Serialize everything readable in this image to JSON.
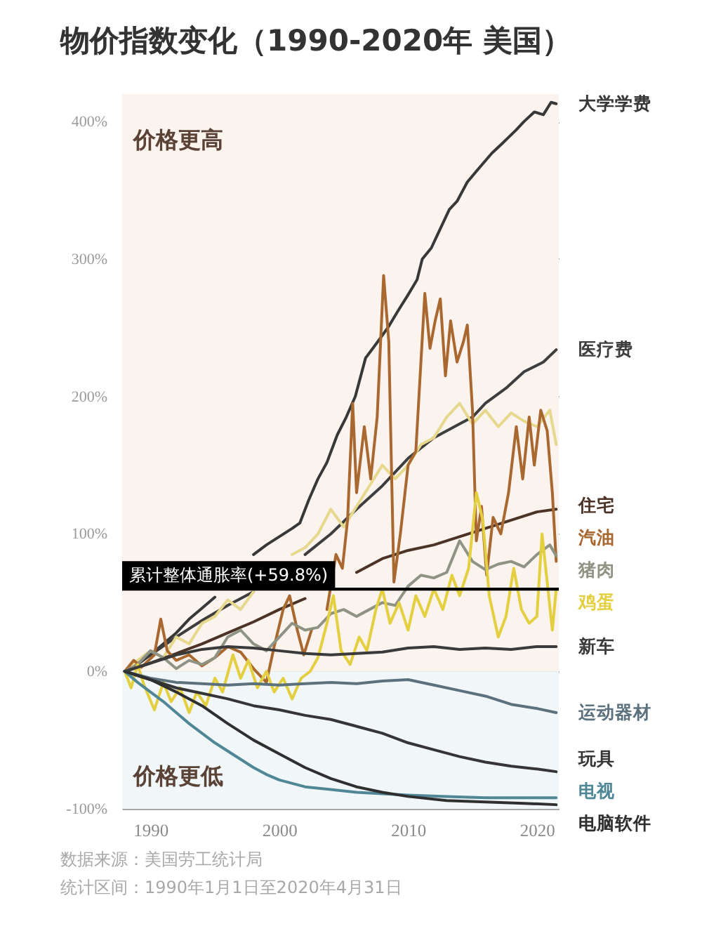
{
  "chart_data": {
    "type": "line",
    "title": "物价指数变化（1990-2020年 美国）",
    "xlim": [
      1987.8,
      2021.7
    ],
    "xticks": [
      1990,
      2000,
      2010,
      2020
    ],
    "ylim": [
      -100,
      420
    ],
    "yticks": [
      {
        "value": -100,
        "label": "-100%"
      },
      {
        "value": 0,
        "label": "0%"
      },
      {
        "value": 100,
        "label": "100%"
      },
      {
        "value": 200,
        "label": "200%"
      },
      {
        "value": 300,
        "label": "300%"
      },
      {
        "value": 400,
        "label": "400%"
      }
    ],
    "grid": "y",
    "bands": [
      {
        "axis": "y",
        "from": 0,
        "to": 420,
        "label": "价格更高",
        "color": "#fbf3ee"
      },
      {
        "axis": "y",
        "from": -100,
        "to": 0,
        "label": "价格更低",
        "color": "#f1f6f8"
      }
    ],
    "ref_lines": [
      {
        "axis": "y",
        "value": 59.8,
        "label": "累计整体通胀率(+59.8%)",
        "color": "#000000"
      }
    ],
    "annotations": [
      "数据来源：美国劳工统计局",
      "统计区间：1990年1月1日至2020年4月31日"
    ],
    "series": [
      {
        "name": "大学学费",
        "color": "#383838",
        "x": [
          1988,
          1989,
          1990,
          1991,
          1992,
          1993,
          1994,
          1995,
          1996,
          1997,
          1998,
          1999,
          2000,
          2001,
          2001.6,
          2002.3,
          2003,
          2003.7,
          2004.5,
          2005.2,
          2005.9,
          2006.7,
          2007.5,
          2008.5,
          2009.2,
          2010,
          2010.7,
          2011.1,
          2011.8,
          2012.3,
          2013.2,
          2013.8,
          2014.6,
          2015.4,
          2016.5,
          2017.3,
          2018.4,
          2019,
          2019.8,
          2020.5,
          2021.1,
          2021.5
        ],
        "values": [
          0,
          5,
          12,
          20,
          28,
          38,
          46,
          54,
          null,
          null,
          85,
          92,
          98,
          104,
          108,
          125,
          140,
          152,
          172,
          185,
          200,
          228,
          238,
          251,
          262,
          274,
          285,
          300,
          308,
          318,
          336,
          342,
          356,
          365,
          377,
          384,
          394,
          400,
          407,
          405,
          414,
          413
        ]
      },
      {
        "name": "医疗费",
        "color": "#3e3e3e",
        "x": [
          1988,
          1990,
          1992,
          1994,
          1996,
          1998,
          2000,
          2002,
          2004,
          2006,
          2008,
          2010,
          2012,
          2014,
          2015,
          2016,
          2017.6,
          2019,
          2020.5,
          2021.5
        ],
        "values": [
          0,
          12,
          25,
          37,
          48,
          58,
          null,
          85,
          100,
          118,
          135,
          155,
          170,
          180,
          185,
          195,
          206,
          218,
          225,
          234
        ]
      },
      {
        "color": "#e6d88c",
        "x": [
          1988,
          1989,
          1990,
          1991,
          1992,
          1993,
          1994,
          1995,
          1996,
          1997,
          1998,
          1999,
          2000,
          2001,
          2002,
          2003,
          2004,
          2005,
          2006,
          2007,
          2008,
          2009,
          2010,
          2011,
          2012,
          2013,
          2014,
          2015,
          2016,
          2017,
          2018,
          2019,
          2020,
          2021,
          2021.5
        ],
        "values": [
          0,
          8,
          15,
          10,
          25,
          20,
          35,
          40,
          52,
          45,
          58,
          null,
          null,
          85,
          90,
          100,
          118,
          105,
          120,
          135,
          150,
          140,
          150,
          165,
          170,
          185,
          195,
          180,
          190,
          178,
          188,
          182,
          178,
          190,
          165
        ]
      },
      {
        "name": "住宅",
        "color": "#4b3326",
        "x": [
          1988,
          1990,
          1992,
          1994,
          1996,
          1998,
          2000,
          2002,
          2004,
          2006,
          2008,
          2010,
          2012,
          2014,
          2016,
          2018,
          2020,
          2021.5
        ],
        "values": [
          0,
          6,
          13,
          20,
          28,
          36,
          45,
          53,
          null,
          72,
          82,
          88,
          92,
          98,
          104,
          110,
          116,
          118
        ]
      },
      {
        "name": "汽油",
        "color": "#a8682f",
        "x": [
          1988,
          1988.7,
          1989.3,
          1990.3,
          1990.8,
          1991.3,
          1992,
          1993,
          1994,
          1995,
          1996,
          1997,
          1998,
          1999,
          1999.6,
          2000.3,
          2000.8,
          2001.4,
          2001.9,
          2002.5,
          2003.2,
          2003.7,
          2004.4,
          2004.9,
          2005.3,
          2005.7,
          2006,
          2006.6,
          2007.1,
          2007.6,
          2008.1,
          2008.5,
          2008.9,
          2009.4,
          2010,
          2010.6,
          2011.3,
          2011.7,
          2012.1,
          2012.5,
          2012.9,
          2013.3,
          2013.8,
          2014.3,
          2014.6,
          2015,
          2015.3,
          2015.7,
          2016.1,
          2016.6,
          2017.2,
          2017.8,
          2018.4,
          2018.9,
          2019.4,
          2019.8,
          2020.3,
          2020.8,
          2021.2,
          2021.5
        ],
        "values": [
          0,
          8,
          3,
          12,
          38,
          15,
          8,
          12,
          4,
          10,
          18,
          14,
          2,
          -8,
          18,
          45,
          55,
          30,
          12,
          30,
          null,
          45,
          85,
          75,
          110,
          195,
          130,
          178,
          140,
          185,
          288,
          240,
          65,
          100,
          150,
          160,
          275,
          235,
          255,
          271,
          215,
          255,
          225,
          240,
          252,
          190,
          95,
          120,
          70,
          112,
          100,
          130,
          178,
          140,
          185,
          150,
          190,
          175,
          130,
          80
        ]
      },
      {
        "name": "猪肉",
        "color": "#8e9383",
        "x": [
          1988,
          1989,
          1990,
          1991,
          1992,
          1993,
          1994,
          1995,
          1996,
          1997,
          1998,
          1999,
          2000,
          2001,
          2002,
          2003,
          2004,
          2005,
          2006,
          2007,
          2008,
          2009,
          2010,
          2011,
          2012,
          2013,
          2014,
          2015,
          2016,
          2017,
          2018,
          2019,
          2020,
          2021,
          2021.5
        ],
        "values": [
          0,
          5,
          15,
          10,
          2,
          8,
          5,
          10,
          25,
          30,
          20,
          15,
          25,
          35,
          30,
          32,
          42,
          45,
          40,
          45,
          50,
          48,
          62,
          70,
          68,
          72,
          95,
          80,
          74,
          78,
          80,
          76,
          85,
          92,
          84
        ]
      },
      {
        "name": "鸡蛋",
        "color": "#e3cf3f",
        "x": [
          1988,
          1988.5,
          1989,
          1989.5,
          1990.3,
          1991,
          1991.6,
          1992.3,
          1993,
          1993.6,
          1994.3,
          1995,
          1995.6,
          1996.4,
          1997,
          1997.6,
          1998.3,
          1999,
          1999.6,
          2000.3,
          2001,
          2001.7,
          2002.4,
          2003,
          2003.7,
          2004.2,
          2004.8,
          2005.5,
          2006.2,
          2006.8,
          2007.5,
          2008,
          2008.6,
          2009.3,
          2010,
          2010.6,
          2011.3,
          2012,
          2012.7,
          2013.4,
          2014,
          2014.7,
          2015.3,
          2015.8,
          2016.3,
          2017,
          2017.6,
          2018.2,
          2018.8,
          2019.4,
          2020,
          2020.4,
          2020.8,
          2021.2,
          2021.5
        ],
        "values": [
          0,
          -12,
          5,
          -10,
          -28,
          -8,
          -22,
          -12,
          -30,
          -15,
          -25,
          -5,
          -15,
          12,
          -5,
          8,
          -12,
          0,
          -15,
          -5,
          -20,
          -5,
          0,
          10,
          35,
          55,
          15,
          5,
          25,
          15,
          45,
          60,
          35,
          50,
          30,
          55,
          40,
          60,
          45,
          70,
          55,
          75,
          130,
          110,
          55,
          25,
          40,
          75,
          45,
          35,
          40,
          100,
          65,
          30,
          60
        ]
      },
      {
        "name": "新车",
        "color": "#3a3a3a",
        "x": [
          1988,
          1990,
          1992,
          1994,
          1996,
          1998,
          2000,
          2002,
          2004,
          2006,
          2008,
          2010,
          2012,
          2014,
          2016,
          2018,
          2020,
          2021.5
        ],
        "values": [
          0,
          6,
          12,
          16,
          18,
          17,
          15,
          13,
          12,
          13,
          14,
          17,
          18,
          16,
          17,
          16,
          18,
          18
        ]
      },
      {
        "name": "运动器材",
        "color": "#5c717e",
        "x": [
          1988,
          1990,
          1992,
          1994,
          1996,
          1998,
          2000,
          2002,
          2004,
          2006,
          2008,
          2010,
          2012,
          2014,
          2016,
          2018,
          2020,
          2021.5
        ],
        "values": [
          0,
          -5,
          -8,
          -9,
          -10,
          -9,
          -10,
          -9,
          -8,
          -9,
          -7,
          -6,
          -10,
          -14,
          -18,
          -24,
          -27,
          -30
        ]
      },
      {
        "name": "玩具",
        "color": "#353535",
        "x": [
          1988,
          1990,
          1992,
          1994,
          1996,
          1998,
          2000,
          2002,
          2004,
          2006,
          2008,
          2010,
          2012,
          2014,
          2016,
          2018,
          2020,
          2021.5
        ],
        "values": [
          0,
          -6,
          -12,
          -16,
          -20,
          -25,
          -28,
          -32,
          -35,
          -40,
          -45,
          -52,
          -57,
          -62,
          -66,
          -69,
          -71,
          -73
        ]
      },
      {
        "name": "电视",
        "color": "#4f8796",
        "x": [
          1988,
          1989,
          1990,
          1991,
          1992,
          1993,
          1994,
          1995,
          1996,
          1997,
          1998,
          1999,
          2000,
          2002,
          2004,
          2006,
          2008,
          2010,
          2013,
          2016,
          2021.5
        ],
        "values": [
          0,
          -8,
          -15,
          -22,
          -30,
          -38,
          -45,
          -52,
          -58,
          -64,
          -70,
          -75,
          -79,
          -84,
          -86,
          -88,
          -89,
          -90,
          -91,
          -92,
          -92
        ]
      },
      {
        "name": "电脑软件",
        "color": "#2f2f2f",
        "x": [
          1988,
          1990,
          1992,
          1994,
          1996,
          1998,
          2000,
          2002,
          2004,
          2006,
          2008,
          2010,
          2013,
          2016,
          2019,
          2021.5
        ],
        "values": [
          0,
          -6,
          -15,
          -25,
          -38,
          -50,
          -60,
          -70,
          -78,
          -84,
          -88,
          -91,
          -94,
          -95,
          -96,
          -97
        ]
      }
    ]
  }
}
